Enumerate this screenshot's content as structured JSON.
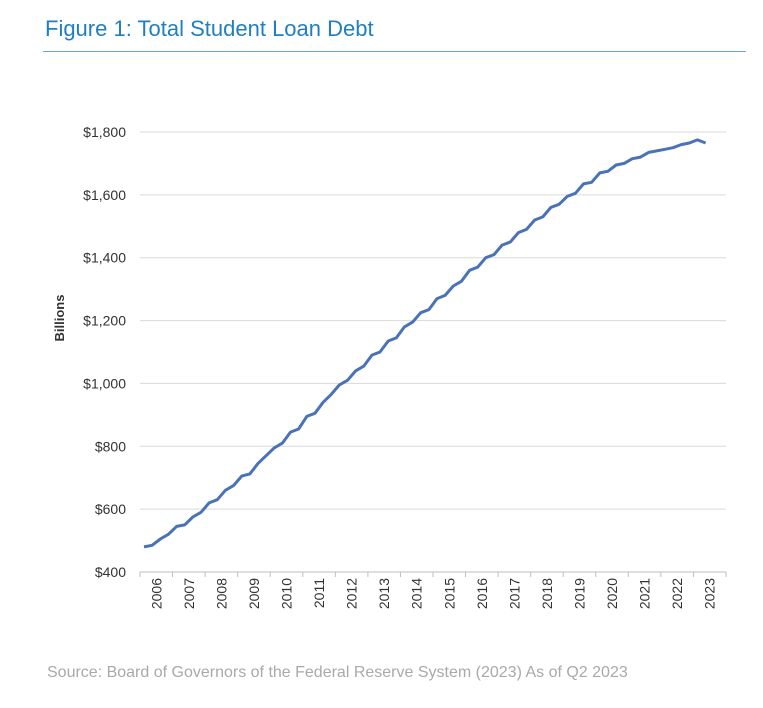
{
  "figure": {
    "title": "Figure 1: Total Student Loan Debt",
    "source": "Source: Board of Governors of the Federal Reserve System (2023) As of Q2 2023"
  },
  "colors": {
    "title": "#1f7fc1",
    "line": "#4a72b8",
    "grid": "#d9d9d9",
    "source": "#a9a9a9"
  },
  "chart_data": {
    "type": "line",
    "title": "",
    "xlabel": "",
    "ylabel": "Billions",
    "ylim": [
      400,
      1800
    ],
    "yticks": [
      400,
      600,
      800,
      1000,
      1200,
      1400,
      1600,
      1800
    ],
    "ytick_labels": [
      "$400",
      "$600",
      "$800",
      "$1,000",
      "$1,200",
      "$1,400",
      "$1,600",
      "$1,800"
    ],
    "xtick_labels": [
      "2006",
      "2007",
      "2008",
      "2009",
      "2010",
      "2011",
      "2012",
      "2013",
      "2014",
      "2015",
      "2016",
      "2017",
      "2018",
      "2019",
      "2020",
      "2021",
      "2022",
      "2023"
    ],
    "grid": "horizontal",
    "series": [
      {
        "x": [
          "2006-Q1",
          "2006-Q2",
          "2006-Q3",
          "2006-Q4",
          "2007-Q1",
          "2007-Q2",
          "2007-Q3",
          "2007-Q4",
          "2008-Q1",
          "2008-Q2",
          "2008-Q3",
          "2008-Q4",
          "2009-Q1",
          "2009-Q2",
          "2009-Q3",
          "2009-Q4",
          "2010-Q1",
          "2010-Q2",
          "2010-Q3",
          "2010-Q4",
          "2011-Q1",
          "2011-Q2",
          "2011-Q3",
          "2011-Q4",
          "2012-Q1",
          "2012-Q2",
          "2012-Q3",
          "2012-Q4",
          "2013-Q1",
          "2013-Q2",
          "2013-Q3",
          "2013-Q4",
          "2014-Q1",
          "2014-Q2",
          "2014-Q3",
          "2014-Q4",
          "2015-Q1",
          "2015-Q2",
          "2015-Q3",
          "2015-Q4",
          "2016-Q1",
          "2016-Q2",
          "2016-Q3",
          "2016-Q4",
          "2017-Q1",
          "2017-Q2",
          "2017-Q3",
          "2017-Q4",
          "2018-Q1",
          "2018-Q2",
          "2018-Q3",
          "2018-Q4",
          "2019-Q1",
          "2019-Q2",
          "2019-Q3",
          "2019-Q4",
          "2020-Q1",
          "2020-Q2",
          "2020-Q3",
          "2020-Q4",
          "2021-Q1",
          "2021-Q2",
          "2021-Q3",
          "2021-Q4",
          "2022-Q1",
          "2022-Q2",
          "2022-Q3",
          "2022-Q4",
          "2023-Q1",
          "2023-Q2"
        ],
        "values": [
          480,
          485,
          505,
          520,
          545,
          550,
          575,
          590,
          620,
          630,
          660,
          675,
          705,
          712,
          745,
          770,
          795,
          810,
          845,
          855,
          895,
          905,
          940,
          965,
          995,
          1010,
          1040,
          1055,
          1090,
          1100,
          1135,
          1145,
          1180,
          1195,
          1225,
          1235,
          1270,
          1280,
          1310,
          1325,
          1360,
          1370,
          1400,
          1410,
          1440,
          1450,
          1480,
          1490,
          1520,
          1530,
          1560,
          1570,
          1595,
          1605,
          1635,
          1640,
          1670,
          1675,
          1695,
          1700,
          1715,
          1720,
          1735,
          1740,
          1745,
          1750,
          1760,
          1765,
          1775,
          1765
        ]
      }
    ]
  }
}
